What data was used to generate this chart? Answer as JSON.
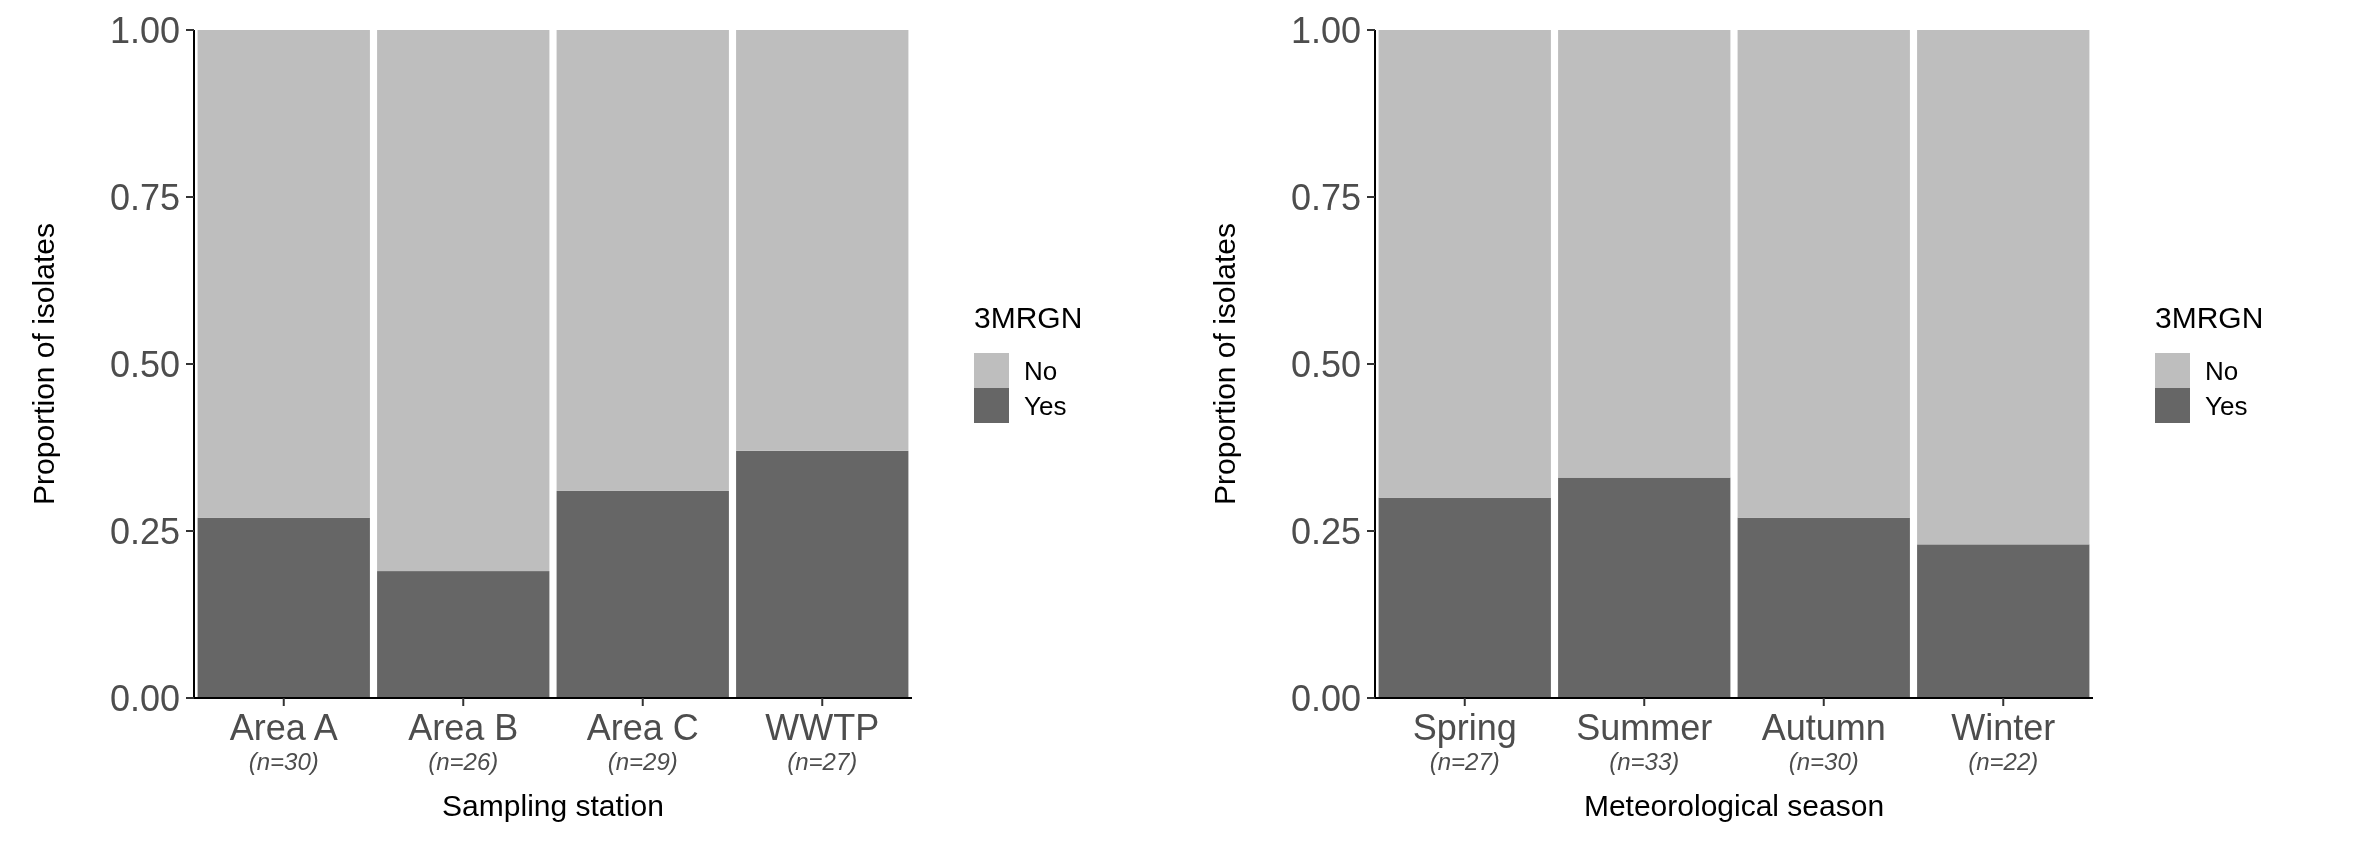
{
  "chart_data": [
    {
      "type": "bar",
      "stacked": true,
      "categories": [
        "Area A\n(n=30)",
        "Area B\n(n=26)",
        "Area C\n(n=29)",
        "WWTP\n(n=27)"
      ],
      "xlabel": "Sampling station",
      "ylabel": "Proportion of isolates",
      "legend_title": "3MRGN",
      "legend": "right",
      "ylim": [
        0,
        1
      ],
      "yticks": [
        {
          "value": 0,
          "label": "0.00"
        },
        {
          "value": 0.25,
          "label": "0.25"
        },
        {
          "value": 0.5,
          "label": "0.50"
        },
        {
          "value": 0.75,
          "label": "0.75"
        },
        {
          "value": 1,
          "label": "1.00"
        }
      ],
      "series": [
        {
          "name": "Yes",
          "color": "#666666",
          "values": [
            0.27,
            0.19,
            0.31,
            0.37
          ]
        },
        {
          "name": "No",
          "color": "#bebebe",
          "values": [
            0.73,
            0.81,
            0.69,
            0.63
          ]
        }
      ]
    },
    {
      "type": "bar",
      "stacked": true,
      "categories": [
        "Spring\n(n=27)",
        "Summer\n(n=33)",
        "Autumn\n(n=30)",
        "Winter\n(n=22)"
      ],
      "xlabel": "Meteorological season",
      "ylabel": "Proportion of isolates",
      "legend_title": "3MRGN",
      "legend": "right",
      "ylim": [
        0,
        1
      ],
      "yticks": [
        {
          "value": 0,
          "label": "0.00"
        },
        {
          "value": 0.25,
          "label": "0.25"
        },
        {
          "value": 0.5,
          "label": "0.50"
        },
        {
          "value": 0.75,
          "label": "0.75"
        },
        {
          "value": 1,
          "label": "1.00"
        }
      ],
      "series": [
        {
          "name": "Yes",
          "color": "#666666",
          "values": [
            0.3,
            0.33,
            0.27,
            0.23
          ]
        },
        {
          "name": "No",
          "color": "#bebebe",
          "values": [
            0.7,
            0.67,
            0.73,
            0.77
          ]
        }
      ]
    }
  ]
}
